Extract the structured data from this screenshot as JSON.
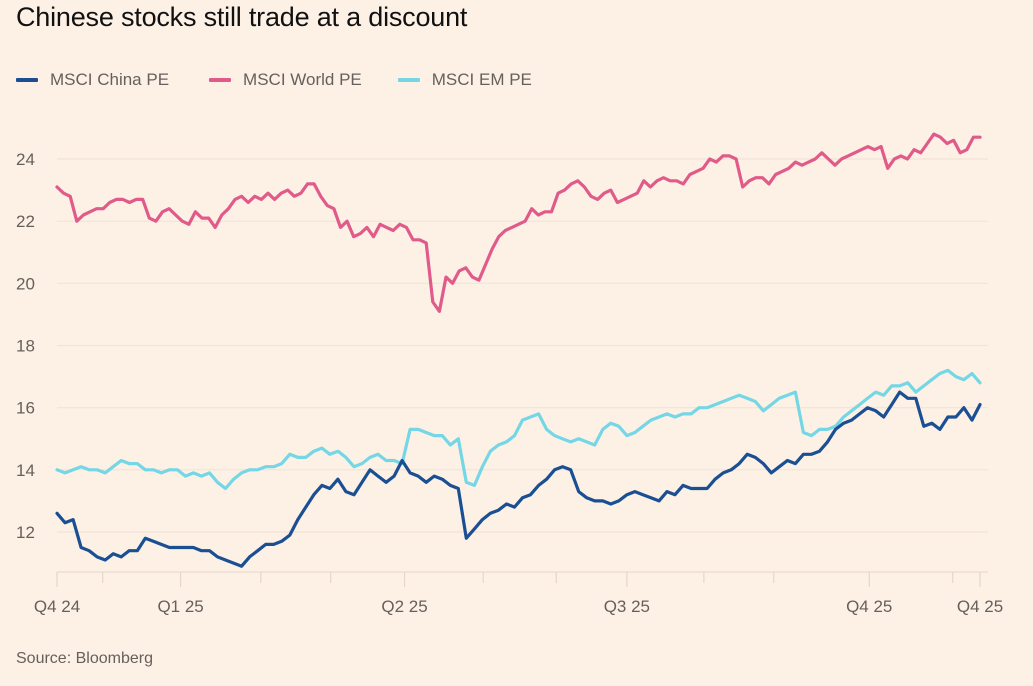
{
  "chart_data": {
    "type": "line",
    "title": "Chinese stocks still trade at a discount",
    "source": "Source: Bloomberg",
    "xlabel": "",
    "ylabel": "",
    "ylim": [
      10.7,
      25
    ],
    "yticks": [
      12,
      14,
      16,
      18,
      20,
      22,
      24
    ],
    "ytick_labels": [
      "12",
      "14",
      "16",
      "18",
      "20",
      "22",
      "24"
    ],
    "grid": true,
    "legend_position": "top-left",
    "x_range": [
      0,
      115
    ],
    "xticks": [
      {
        "x": 0,
        "label": "Q4 24"
      },
      {
        "x": 5.7,
        "label": ""
      },
      {
        "x": 15.4,
        "label": "Q1 25"
      },
      {
        "x": 25.4,
        "label": ""
      },
      {
        "x": 34.1,
        "label": ""
      },
      {
        "x": 43.3,
        "label": "Q2 25"
      },
      {
        "x": 53.1,
        "label": ""
      },
      {
        "x": 62.2,
        "label": ""
      },
      {
        "x": 71.0,
        "label": "Q3 25"
      },
      {
        "x": 80.6,
        "label": ""
      },
      {
        "x": 89.3,
        "label": ""
      },
      {
        "x": 101.2,
        "label": "Q4 25"
      },
      {
        "x": 111.6,
        "label": ""
      },
      {
        "x": 115,
        "label": "Q4 25"
      }
    ],
    "series": [
      {
        "name": "MSCI China PE",
        "color": "#1b4f93",
        "values": [
          12.6,
          12.3,
          12.4,
          11.5,
          11.4,
          11.2,
          11.1,
          11.3,
          11.2,
          11.4,
          11.4,
          11.8,
          11.7,
          11.6,
          11.5,
          11.5,
          11.5,
          11.5,
          11.4,
          11.4,
          11.2,
          11.1,
          11.0,
          10.9,
          11.2,
          11.4,
          11.6,
          11.6,
          11.7,
          11.9,
          12.4,
          12.8,
          13.2,
          13.5,
          13.4,
          13.7,
          13.3,
          13.2,
          13.6,
          14.0,
          13.8,
          13.6,
          13.8,
          14.3,
          13.9,
          13.8,
          13.6,
          13.8,
          13.7,
          13.5,
          13.4,
          11.8,
          12.1,
          12.4,
          12.6,
          12.7,
          12.9,
          12.8,
          13.1,
          13.2,
          13.5,
          13.7,
          14.0,
          14.1,
          14.0,
          13.3,
          13.1,
          13.0,
          13.0,
          12.9,
          13.0,
          13.2,
          13.3,
          13.2,
          13.1,
          13.0,
          13.3,
          13.2,
          13.5,
          13.4,
          13.4,
          13.4,
          13.7,
          13.9,
          14.0,
          14.2,
          14.5,
          14.4,
          14.2,
          13.9,
          14.1,
          14.3,
          14.2,
          14.5,
          14.5,
          14.6,
          14.9,
          15.3,
          15.5,
          15.6,
          15.8,
          16.0,
          15.9,
          15.7,
          16.1,
          16.5,
          16.3,
          16.3,
          15.4,
          15.5,
          15.3,
          15.7,
          15.7,
          16.0,
          15.6,
          16.1
        ]
      },
      {
        "name": "MSCI World PE",
        "color": "#e05b8a",
        "values": [
          23.1,
          22.9,
          22.8,
          22.0,
          22.2,
          22.3,
          22.4,
          22.4,
          22.6,
          22.7,
          22.7,
          22.6,
          22.7,
          22.7,
          22.1,
          22.0,
          22.3,
          22.4,
          22.2,
          22.0,
          21.9,
          22.3,
          22.1,
          22.1,
          21.8,
          22.2,
          22.4,
          22.7,
          22.8,
          22.6,
          22.8,
          22.7,
          22.9,
          22.7,
          22.9,
          23.0,
          22.8,
          22.9,
          23.2,
          23.2,
          22.8,
          22.5,
          22.4,
          21.8,
          22.0,
          21.5,
          21.6,
          21.8,
          21.5,
          21.9,
          21.8,
          21.7,
          21.9,
          21.8,
          21.4,
          21.4,
          21.3,
          19.4,
          19.1,
          20.2,
          20.0,
          20.4,
          20.5,
          20.2,
          20.1,
          20.6,
          21.1,
          21.5,
          21.7,
          21.8,
          21.9,
          22.0,
          22.4,
          22.2,
          22.3,
          22.3,
          22.9,
          23.0,
          23.2,
          23.3,
          23.1,
          22.8,
          22.7,
          22.9,
          23.0,
          22.6,
          22.7,
          22.8,
          22.9,
          23.3,
          23.1,
          23.3,
          23.4,
          23.3,
          23.3,
          23.2,
          23.5,
          23.6,
          23.7,
          24.0,
          23.9,
          24.1,
          24.1,
          24.0,
          23.1,
          23.3,
          23.4,
          23.4,
          23.2,
          23.5,
          23.6,
          23.7,
          23.9,
          23.8,
          23.9,
          24.0,
          24.2,
          24.0,
          23.8,
          24.0,
          24.1,
          24.2,
          24.3,
          24.4,
          24.3,
          24.4,
          23.7,
          24.0,
          24.1,
          24.0,
          24.3,
          24.2,
          24.5,
          24.8,
          24.7,
          24.5,
          24.6,
          24.2,
          24.3,
          24.7,
          24.7
        ]
      },
      {
        "name": "MSCI EM PE",
        "color": "#75d6e6",
        "values": [
          14.0,
          13.9,
          14.0,
          14.1,
          14.0,
          14.0,
          13.9,
          14.1,
          14.3,
          14.2,
          14.2,
          14.0,
          14.0,
          13.9,
          14.0,
          14.0,
          13.8,
          13.9,
          13.8,
          13.9,
          13.6,
          13.4,
          13.7,
          13.9,
          14.0,
          14.0,
          14.1,
          14.1,
          14.2,
          14.5,
          14.4,
          14.4,
          14.6,
          14.7,
          14.5,
          14.6,
          14.4,
          14.1,
          14.2,
          14.4,
          14.5,
          14.3,
          14.3,
          14.2,
          15.3,
          15.3,
          15.2,
          15.1,
          15.1,
          14.8,
          15.0,
          13.6,
          13.5,
          14.1,
          14.6,
          14.8,
          14.9,
          15.1,
          15.6,
          15.7,
          15.8,
          15.3,
          15.1,
          15.0,
          14.9,
          15.0,
          14.9,
          14.8,
          15.3,
          15.5,
          15.4,
          15.1,
          15.2,
          15.4,
          15.6,
          15.7,
          15.8,
          15.7,
          15.8,
          15.8,
          16.0,
          16.0,
          16.1,
          16.2,
          16.3,
          16.4,
          16.3,
          16.2,
          15.9,
          16.1,
          16.3,
          16.4,
          16.5,
          15.2,
          15.1,
          15.3,
          15.3,
          15.4,
          15.7,
          15.9,
          16.1,
          16.3,
          16.5,
          16.4,
          16.7,
          16.7,
          16.8,
          16.5,
          16.7,
          16.9,
          17.1,
          17.2,
          17.0,
          16.9,
          17.1,
          16.8
        ]
      }
    ]
  }
}
